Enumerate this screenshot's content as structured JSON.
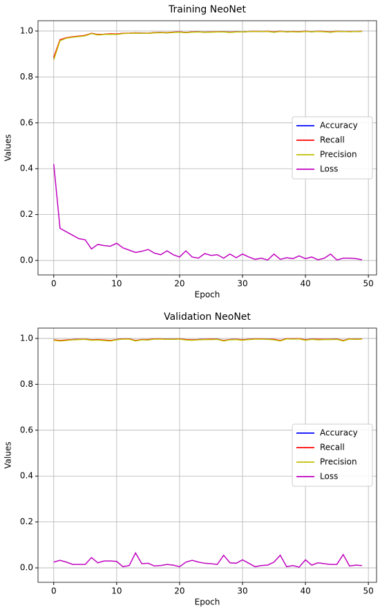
{
  "chart_data": [
    {
      "type": "line",
      "title": "Training NeoNet",
      "xlabel": "Epoch",
      "ylabel": "Values",
      "x": [
        0,
        1,
        2,
        3,
        4,
        5,
        6,
        7,
        8,
        9,
        10,
        11,
        12,
        13,
        14,
        15,
        16,
        17,
        18,
        19,
        20,
        21,
        22,
        23,
        24,
        25,
        26,
        27,
        28,
        29,
        30,
        31,
        32,
        33,
        34,
        35,
        36,
        37,
        38,
        39,
        40,
        41,
        42,
        43,
        44,
        45,
        46,
        47,
        48,
        49
      ],
      "xlim": [
        -2.5,
        51.3
      ],
      "xticks": [
        0,
        10,
        20,
        30,
        40,
        50
      ],
      "ylim": [
        -0.063,
        1.045
      ],
      "yticks": [
        {
          "value": 0,
          "label": "0.0"
        },
        0.2,
        0.4,
        0.6,
        0.8,
        {
          "value": 1,
          "label": "1.0"
        }
      ],
      "grid": true,
      "legend": "center right",
      "series": [
        {
          "name": "Accuracy",
          "color": "#0000ff",
          "values": [
            0.88,
            0.96,
            0.97,
            0.974,
            0.977,
            0.98,
            0.99,
            0.984,
            0.986,
            0.987,
            0.986,
            0.99,
            0.99,
            0.992,
            0.991,
            0.99,
            0.993,
            0.994,
            0.992,
            0.995,
            0.996,
            0.993,
            0.996,
            0.997,
            0.995,
            0.996,
            0.996,
            0.997,
            0.995,
            0.997,
            0.996,
            0.998,
            0.999,
            0.998,
            0.999,
            0.995,
            0.999,
            0.997,
            0.998,
            0.996,
            0.999,
            0.997,
            0.999,
            0.998,
            0.995,
            0.999,
            0.998,
            0.998,
            0.998,
            0.999
          ]
        },
        {
          "name": "Recall",
          "color": "#ff0000",
          "values": [
            0.885,
            0.962,
            0.971,
            0.975,
            0.978,
            0.981,
            0.99,
            0.985,
            0.986,
            0.988,
            0.987,
            0.99,
            0.991,
            0.992,
            0.991,
            0.991,
            0.993,
            0.994,
            0.993,
            0.995,
            0.996,
            0.994,
            0.996,
            0.997,
            0.995,
            0.996,
            0.997,
            0.997,
            0.995,
            0.997,
            0.996,
            0.998,
            0.999,
            0.998,
            0.999,
            0.996,
            0.999,
            0.997,
            0.998,
            0.997,
            0.999,
            0.997,
            0.999,
            0.998,
            0.996,
            0.999,
            0.998,
            0.998,
            0.998,
            0.999
          ]
        },
        {
          "name": "Precision",
          "color": "#bfbf00",
          "values": [
            0.875,
            0.958,
            0.969,
            0.973,
            0.976,
            0.979,
            0.989,
            0.983,
            0.985,
            0.986,
            0.985,
            0.989,
            0.99,
            0.991,
            0.99,
            0.99,
            0.992,
            0.993,
            0.992,
            0.994,
            0.995,
            0.993,
            0.995,
            0.996,
            0.995,
            0.995,
            0.996,
            0.996,
            0.994,
            0.996,
            0.996,
            0.998,
            0.998,
            0.998,
            0.998,
            0.995,
            0.998,
            0.997,
            0.997,
            0.996,
            0.998,
            0.997,
            0.998,
            0.997,
            0.995,
            0.998,
            0.998,
            0.997,
            0.998,
            0.998
          ]
        },
        {
          "name": "Loss",
          "color": "#bf00bf",
          "values": [
            0.42,
            0.14,
            0.125,
            0.11,
            0.095,
            0.09,
            0.05,
            0.07,
            0.065,
            0.062,
            0.075,
            0.055,
            0.045,
            0.035,
            0.04,
            0.048,
            0.032,
            0.025,
            0.042,
            0.025,
            0.015,
            0.042,
            0.015,
            0.01,
            0.03,
            0.022,
            0.025,
            0.01,
            0.028,
            0.012,
            0.028,
            0.015,
            0.005,
            0.01,
            0.002,
            0.028,
            0.005,
            0.012,
            0.008,
            0.02,
            0.008,
            0.015,
            0.003,
            0.01,
            0.028,
            0.002,
            0.01,
            0.01,
            0.008,
            0.003
          ]
        }
      ]
    },
    {
      "type": "line",
      "title": "Validation NeoNet",
      "xlabel": "Epoch",
      "ylabel": "Values",
      "x": [
        0,
        1,
        2,
        3,
        4,
        5,
        6,
        7,
        8,
        9,
        10,
        11,
        12,
        13,
        14,
        15,
        16,
        17,
        18,
        19,
        20,
        21,
        22,
        23,
        24,
        25,
        26,
        27,
        28,
        29,
        30,
        31,
        32,
        33,
        34,
        35,
        36,
        37,
        38,
        39,
        40,
        41,
        42,
        43,
        44,
        45,
        46,
        47,
        48,
        49
      ],
      "xlim": [
        -2.5,
        51.3
      ],
      "xticks": [
        0,
        10,
        20,
        30,
        40,
        50
      ],
      "ylim": [
        -0.063,
        1.045
      ],
      "yticks": [
        {
          "value": 0,
          "label": "0.0"
        },
        0.2,
        0.4,
        0.6,
        0.8,
        {
          "value": 1,
          "label": "1.0"
        }
      ],
      "grid": true,
      "legend": "center right",
      "series": [
        {
          "name": "Accuracy",
          "color": "#0000ff",
          "values": [
            0.993,
            0.99,
            0.992,
            0.995,
            0.996,
            0.996,
            0.993,
            0.994,
            0.992,
            0.99,
            0.995,
            0.998,
            0.998,
            0.99,
            0.995,
            0.994,
            0.998,
            0.998,
            0.997,
            0.997,
            0.998,
            0.994,
            0.993,
            0.995,
            0.996,
            0.996,
            0.997,
            0.99,
            0.995,
            0.996,
            0.993,
            0.996,
            0.998,
            0.998,
            0.997,
            0.995,
            0.99,
            0.999,
            0.998,
            0.999,
            0.993,
            0.997,
            0.995,
            0.996,
            0.996,
            0.997,
            0.99,
            0.998,
            0.997,
            0.998
          ]
        },
        {
          "name": "Recall",
          "color": "#ff0000",
          "values": [
            0.994,
            0.991,
            0.993,
            0.995,
            0.996,
            0.997,
            0.994,
            0.995,
            0.993,
            0.991,
            0.995,
            0.998,
            0.998,
            0.991,
            0.995,
            0.995,
            0.998,
            0.998,
            0.997,
            0.997,
            0.998,
            0.995,
            0.994,
            0.995,
            0.996,
            0.997,
            0.997,
            0.991,
            0.995,
            0.996,
            0.994,
            0.996,
            0.998,
            0.998,
            0.997,
            0.996,
            0.991,
            0.999,
            0.998,
            0.999,
            0.994,
            0.997,
            0.996,
            0.996,
            0.996,
            0.997,
            0.991,
            0.998,
            0.997,
            0.998
          ]
        },
        {
          "name": "Precision",
          "color": "#bfbf00",
          "values": [
            0.992,
            0.989,
            0.991,
            0.994,
            0.995,
            0.996,
            0.992,
            0.993,
            0.991,
            0.989,
            0.994,
            0.997,
            0.997,
            0.989,
            0.994,
            0.993,
            0.997,
            0.997,
            0.996,
            0.996,
            0.997,
            0.993,
            0.992,
            0.994,
            0.995,
            0.995,
            0.996,
            0.989,
            0.994,
            0.995,
            0.992,
            0.995,
            0.997,
            0.997,
            0.996,
            0.994,
            0.989,
            0.998,
            0.997,
            0.998,
            0.992,
            0.996,
            0.994,
            0.995,
            0.995,
            0.996,
            0.989,
            0.997,
            0.996,
            0.997
          ]
        },
        {
          "name": "Loss",
          "color": "#bf00bf",
          "values": [
            0.025,
            0.033,
            0.025,
            0.015,
            0.015,
            0.015,
            0.045,
            0.022,
            0.03,
            0.03,
            0.028,
            0.005,
            0.01,
            0.065,
            0.018,
            0.02,
            0.008,
            0.01,
            0.015,
            0.012,
            0.005,
            0.025,
            0.033,
            0.025,
            0.02,
            0.018,
            0.015,
            0.055,
            0.022,
            0.02,
            0.035,
            0.02,
            0.005,
            0.01,
            0.012,
            0.025,
            0.055,
            0.005,
            0.01,
            0.003,
            0.035,
            0.012,
            0.022,
            0.018,
            0.015,
            0.015,
            0.058,
            0.008,
            0.012,
            0.01
          ]
        }
      ]
    }
  ]
}
